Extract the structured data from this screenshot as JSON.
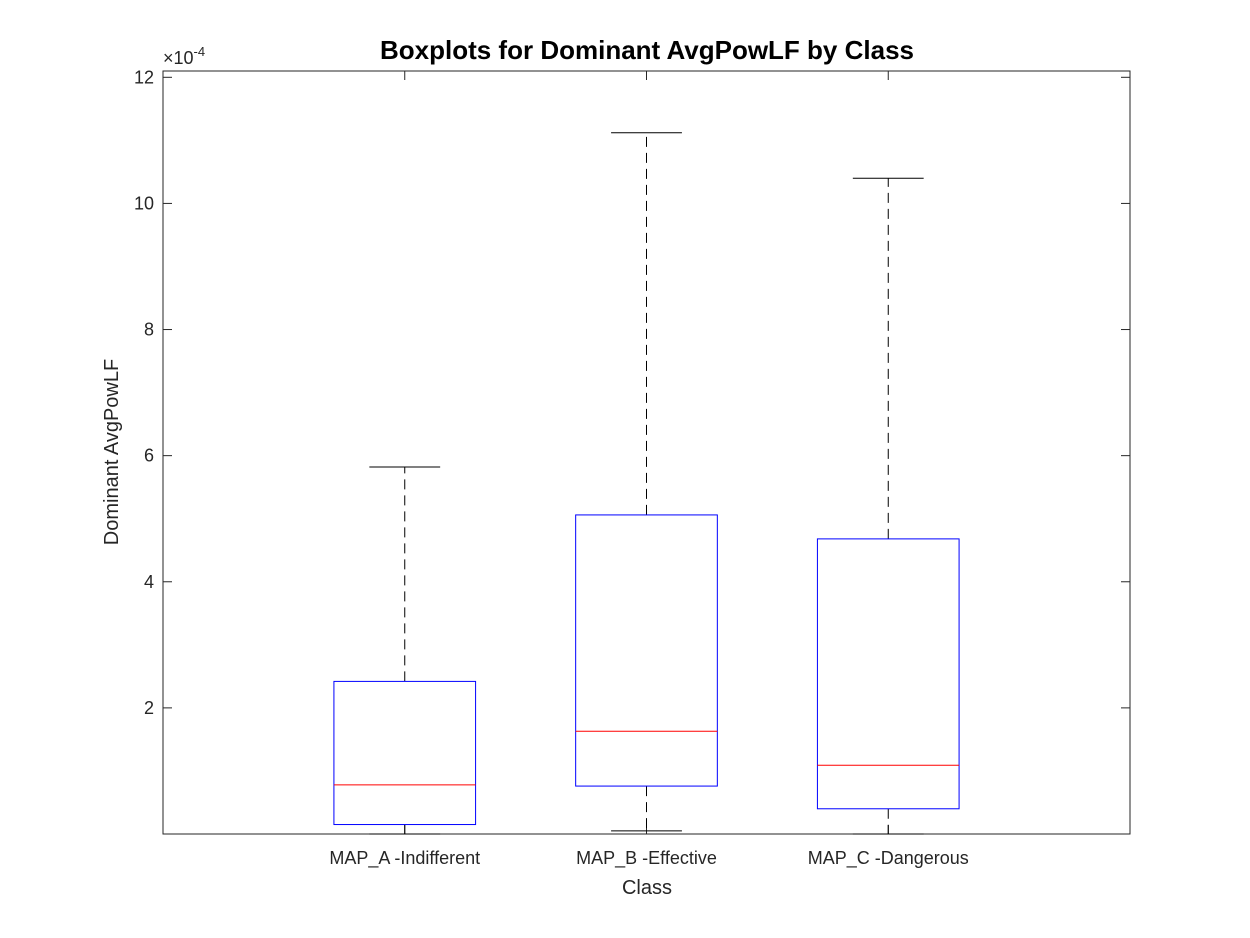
{
  "chart_data": {
    "type": "boxplot",
    "title": "Boxplots for Dominant AvgPowLF by Class",
    "xlabel": "Class",
    "ylabel": "Dominant AvgPowLF",
    "exponent_label": "×10",
    "exponent_power": "-4",
    "ylim": [
      0,
      12.1
    ],
    "yticks": [
      2,
      4,
      6,
      8,
      10,
      12
    ],
    "ytick_labels": [
      "2",
      "4",
      "6",
      "8",
      "10",
      "12"
    ],
    "scale_note": "values in units of 1e-4",
    "grid": false,
    "colors": {
      "box": "#0000ff",
      "median": "#ff0000",
      "whisker": "#000000"
    },
    "categories": [
      "MAP_A -Indifferent",
      "MAP_B -Effective",
      "MAP_C -Dangerous"
    ],
    "series": [
      {
        "whisker_low": 0.0,
        "q1": 0.15,
        "median": 0.78,
        "q3": 2.42,
        "whisker_high": 5.82
      },
      {
        "whisker_low": 0.05,
        "q1": 0.76,
        "median": 1.63,
        "q3": 5.06,
        "whisker_high": 11.12
      },
      {
        "whisker_low": 0.0,
        "q1": 0.4,
        "median": 1.09,
        "q3": 4.68,
        "whisker_high": 10.4
      }
    ]
  }
}
